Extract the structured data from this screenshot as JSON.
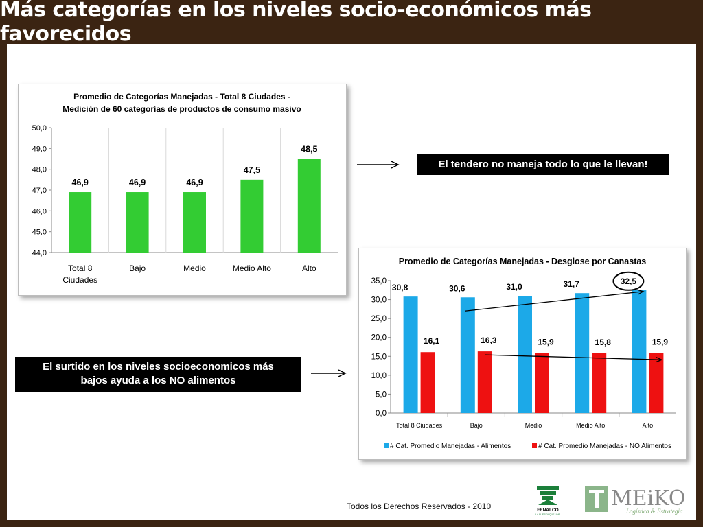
{
  "slide": {
    "title": "Más categorías en los niveles socio-económicos más favorecidos",
    "footer": "Todos los Derechos Reservados - 2010",
    "callout_top": "El tendero no maneja todo lo que le llevan!",
    "callout_bottom_line1": "El surtido en los niveles socioeconomicos más",
    "callout_bottom_line2": "bajos ayuda a los NO alimentos",
    "logo_fenalco_text": "FENALCO",
    "logo_fenalco_tagline": "LA FUERZA QUE UNE",
    "logo_meiko_text": "MEiKO",
    "logo_meiko_tagline": "Logística & Estrategia"
  },
  "chart_data": [
    {
      "type": "bar",
      "title": "Promedio de Categorías Manejadas  - Total 8 Ciudades -",
      "subtitle": "Medición  de 60 categorías  de productos de consumo  masivo",
      "categories": [
        "Total 8 Ciudades",
        "Bajo",
        "Medio",
        "Medio Alto",
        "Alto"
      ],
      "values": [
        46.9,
        46.9,
        46.9,
        47.5,
        48.5
      ],
      "value_labels": [
        "46,9",
        "46,9",
        "46,9",
        "47,5",
        "48,5"
      ],
      "ylim": [
        44,
        50
      ],
      "yticks": [
        "44,0",
        "45,0",
        "46,0",
        "47,0",
        "48,0",
        "49,0",
        "50,0"
      ],
      "grid": "vertical",
      "color": "#33cc33"
    },
    {
      "type": "bar",
      "title": "Promedio de Categorías Manejadas - Desglose por Canastas",
      "categories": [
        "Total 8 Ciudades",
        "Bajo",
        "Medio",
        "Medio Alto",
        "Alto"
      ],
      "series": [
        {
          "name": "# Cat. Promedio Manejadas - Alimentos",
          "values": [
            30.8,
            30.6,
            31.0,
            31.7,
            32.5
          ],
          "labels": [
            "30,8",
            "30,6",
            "31,0",
            "31,7",
            "32,5"
          ],
          "color": "#1ca9e8"
        },
        {
          "name": "# Cat. Promedio Manejadas - NO Alimentos",
          "values": [
            16.1,
            16.3,
            15.9,
            15.8,
            15.9
          ],
          "labels": [
            "16,1",
            "16,3",
            "15,9",
            "15,8",
            "15,9"
          ],
          "color": "#ee1111"
        }
      ],
      "ylim": [
        0,
        35
      ],
      "yticks": [
        "0,0",
        "5,0",
        "10,0",
        "15,0",
        "20,0",
        "25,0",
        "30,0",
        "35,0"
      ],
      "legend": "bottom",
      "highlight": "32,5"
    }
  ]
}
